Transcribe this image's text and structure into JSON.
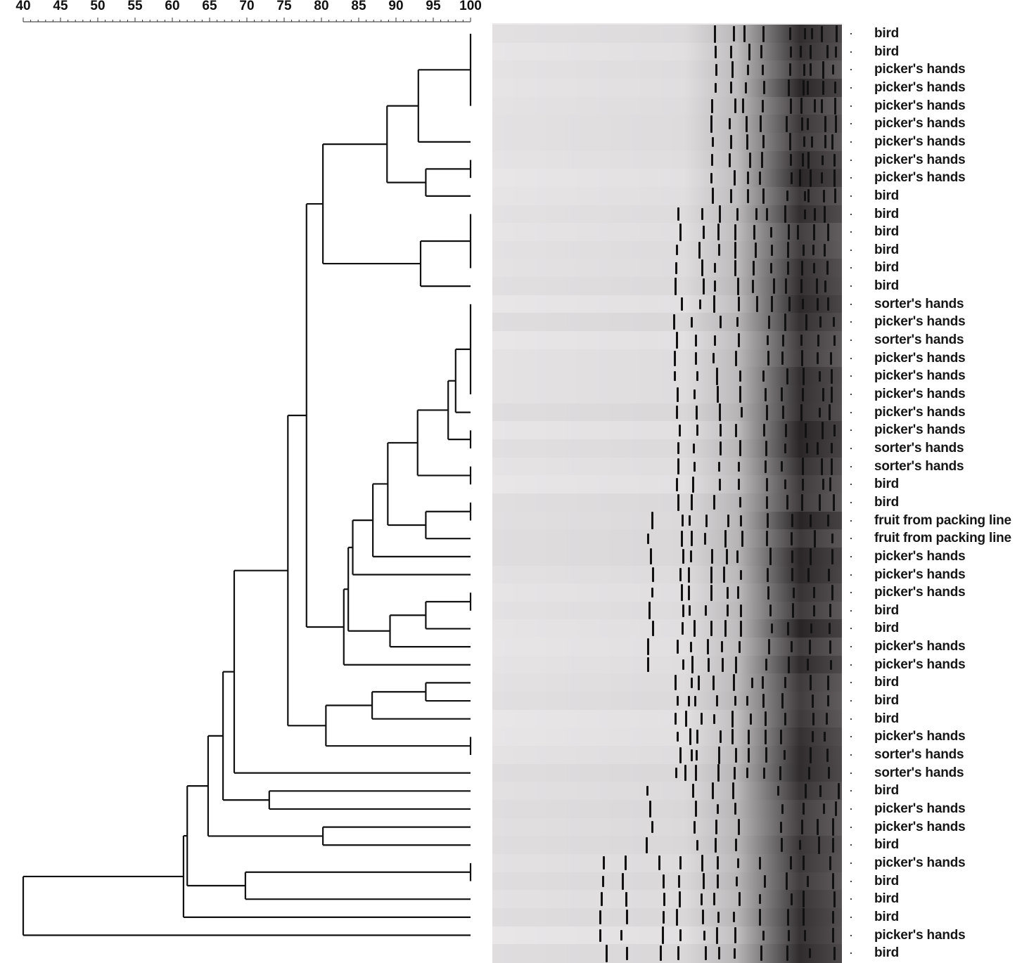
{
  "axis": {
    "ticks": [
      "40",
      "45",
      "50",
      "55",
      "60",
      "65",
      "70",
      "75",
      "80",
      "85",
      "90",
      "95",
      "100"
    ],
    "range": [
      40,
      100
    ]
  },
  "lanes": [
    "bird",
    "bird",
    "picker's hands",
    "picker's hands",
    "picker's hands",
    "picker's hands",
    "picker's hands",
    "picker's hands",
    "picker's hands",
    "bird",
    "bird",
    "bird",
    "bird",
    "bird",
    "bird",
    "sorter's hands",
    "picker's hands",
    "sorter's hands",
    "picker's hands",
    "picker's hands",
    "picker's hands",
    "picker's hands",
    "picker's hands",
    "sorter's hands",
    "sorter's hands",
    "bird",
    "bird",
    "fruit from packing line",
    "fruit from packing line",
    "picker's hands",
    "picker's hands",
    "picker's hands",
    "bird",
    "bird",
    "picker's hands",
    "picker's hands",
    "bird",
    "bird",
    "bird",
    "picker's hands",
    "sorter's hands",
    "sorter's hands",
    "bird",
    "picker's hands",
    "picker's hands",
    "bird",
    "picker's hands",
    "bird",
    "bird",
    "bird",
    "picker's hands",
    "bird"
  ]
}
